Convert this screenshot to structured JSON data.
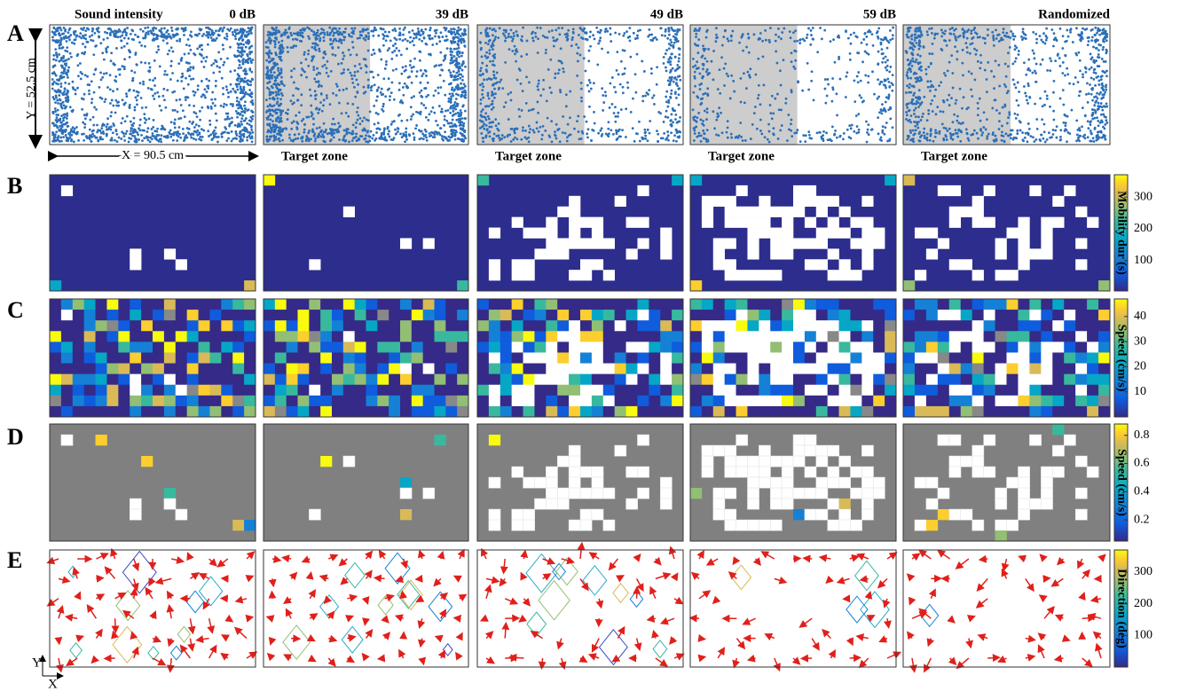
{
  "panel_labels": [
    "A",
    "B",
    "C",
    "D",
    "E"
  ],
  "header": {
    "title": "Sound intensity",
    "columns": [
      "0 dB",
      "39 dB",
      "49 dB",
      "59 dB",
      "Randomized"
    ]
  },
  "target_zone_labels": [
    "Target zone",
    "Target zone",
    "Target zone",
    "Target zone"
  ],
  "dimensions": {
    "y": "Y = 52.5 cm",
    "x": "X = 90.5 cm"
  },
  "colorbars": [
    {
      "label": "Mobility dur (s)",
      "lim": [
        5,
        370
      ],
      "ticks": [
        100,
        200,
        300
      ]
    },
    {
      "label": "Speed (cm/s)",
      "lim": [
        0,
        47
      ],
      "ticks": [
        10,
        20,
        30,
        40
      ]
    },
    {
      "label": "Speed (cm/s)",
      "lim": [
        0.05,
        0.88
      ],
      "ticks": [
        0.2,
        0.4,
        0.6,
        0.8
      ]
    },
    {
      "label": "Direction (deg)",
      "lim": [
        0,
        370
      ],
      "ticks": [
        100,
        200,
        300
      ]
    }
  ],
  "axes_icon": {
    "y": "Y",
    "x": "X"
  }
}
